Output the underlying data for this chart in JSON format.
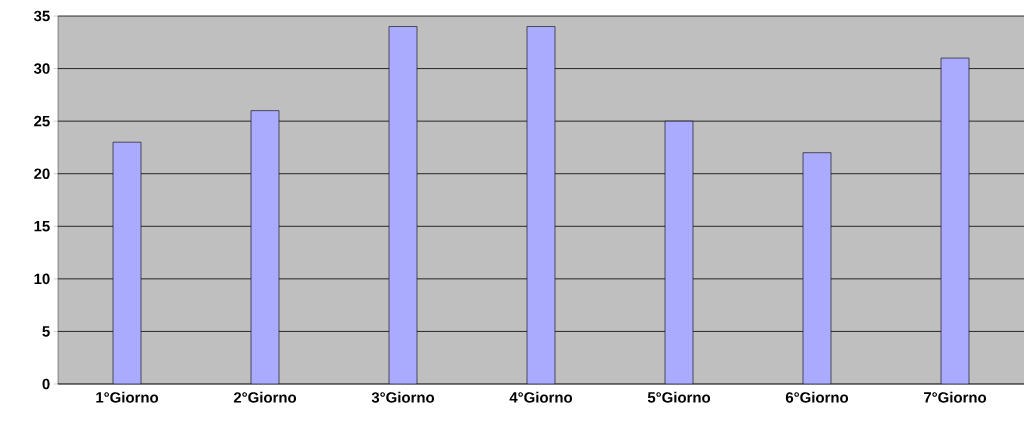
{
  "chart_data": {
    "type": "bar",
    "categories": [
      "1°Giorno",
      "2°Giorno",
      "3°Giorno",
      "4°Giorno",
      "5°Giorno",
      "6°Giorno",
      "7°Giorno"
    ],
    "values": [
      23,
      26,
      34,
      34,
      25,
      22,
      31
    ],
    "color": "#aaaaff",
    "ylim": [
      0,
      35
    ],
    "yticks": [
      0,
      5,
      10,
      15,
      20,
      25,
      30,
      35
    ],
    "grid": "y"
  }
}
